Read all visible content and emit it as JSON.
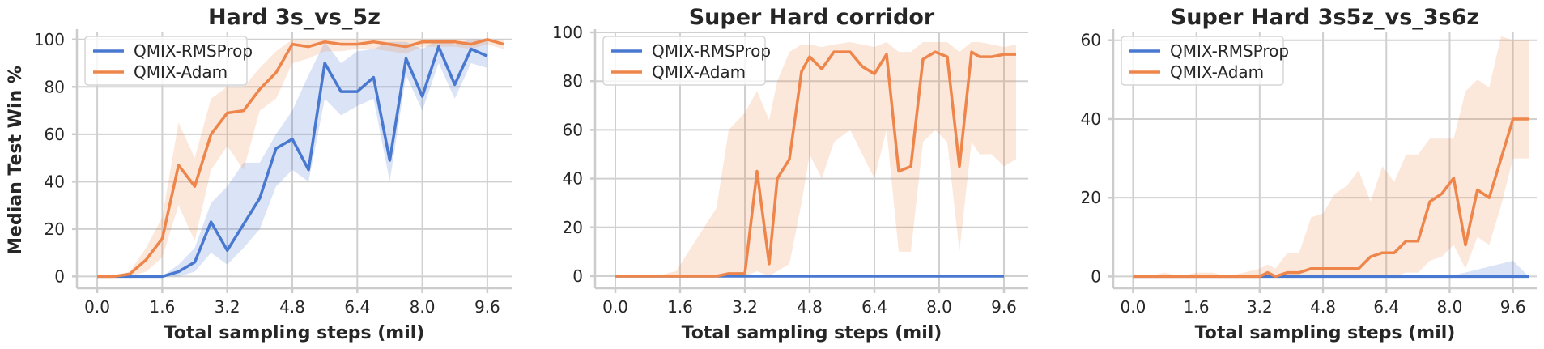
{
  "colors": {
    "rmsprop": "#4878d0",
    "adam": "#ee854a"
  },
  "chart_data": [
    {
      "type": "line",
      "title": "Hard 3s_vs_5z",
      "xlabel": "Total sampling steps (mil)",
      "ylabel": "Median Test Win %",
      "xlim": [
        -0.5,
        10.2
      ],
      "ylim": [
        -5,
        103
      ],
      "xticks": [
        "0.0",
        "1.6",
        "3.2",
        "4.8",
        "6.4",
        "8.0",
        "9.6"
      ],
      "yticks": [
        "0",
        "20",
        "40",
        "60",
        "80",
        "100"
      ],
      "grid": true,
      "legend": "top-left",
      "series": [
        {
          "name": "QMIX-RMSProp",
          "x": [
            0,
            0.4,
            0.8,
            1.2,
            1.6,
            2.0,
            2.4,
            2.8,
            3.2,
            3.6,
            4.0,
            4.4,
            4.8,
            5.2,
            5.6,
            6.0,
            6.4,
            6.8,
            7.2,
            7.6,
            8.0,
            8.4,
            8.8,
            9.2,
            9.6
          ],
          "y": [
            0,
            0,
            0,
            0,
            0,
            2,
            6,
            23,
            11,
            22,
            33,
            54,
            58,
            45,
            90,
            78,
            78,
            84,
            49,
            92,
            76,
            97,
            81,
            96,
            93
          ],
          "lower": [
            0,
            0,
            0,
            0,
            0,
            0,
            2,
            10,
            5,
            12,
            20,
            38,
            45,
            40,
            75,
            68,
            72,
            75,
            40,
            85,
            70,
            90,
            75,
            90,
            88
          ],
          "upper": [
            0,
            0,
            0,
            0,
            0,
            5,
            12,
            31,
            38,
            48,
            48,
            60,
            70,
            85,
            99,
            90,
            95,
            96,
            99,
            99,
            96,
            100,
            98,
            100,
            100
          ]
        },
        {
          "name": "QMIX-Adam",
          "x": [
            0,
            0.4,
            0.8,
            1.2,
            1.6,
            2.0,
            2.4,
            2.8,
            3.2,
            3.6,
            4.0,
            4.4,
            4.8,
            5.2,
            5.6,
            6.0,
            6.4,
            6.8,
            7.2,
            7.6,
            8.0,
            8.4,
            8.8,
            9.2,
            9.6,
            10.0
          ],
          "y": [
            0,
            0,
            1,
            7,
            16,
            47,
            38,
            60,
            69,
            70,
            79,
            86,
            98,
            97,
            99,
            98,
            98,
            99,
            98,
            97,
            99,
            99,
            99,
            98,
            100,
            98
          ],
          "lower": [
            0,
            0,
            0,
            2,
            8,
            30,
            15,
            45,
            55,
            45,
            70,
            75,
            90,
            92,
            95,
            95,
            96,
            96,
            95,
            94,
            97,
            97,
            97,
            96,
            98,
            96
          ],
          "upper": [
            0,
            0,
            2,
            12,
            25,
            65,
            50,
            75,
            80,
            80,
            88,
            95,
            100,
            100,
            100,
            100,
            100,
            100,
            100,
            100,
            100,
            100,
            100,
            100,
            100,
            100
          ]
        }
      ]
    },
    {
      "type": "line",
      "title": "Super Hard corridor",
      "xlabel": "Total sampling steps (mil)",
      "ylabel": "",
      "xlim": [
        -0.5,
        10.2
      ],
      "ylim": [
        -5,
        100
      ],
      "xticks": [
        "0.0",
        "1.6",
        "3.2",
        "4.8",
        "6.4",
        "8.0",
        "9.6"
      ],
      "yticks": [
        "0",
        "20",
        "40",
        "60",
        "80",
        "100"
      ],
      "grid": true,
      "legend": "top-left",
      "series": [
        {
          "name": "QMIX-RMSProp",
          "x": [
            0,
            1.2,
            2.4,
            3.6,
            4.8,
            6.0,
            7.2,
            8.0,
            8.4,
            8.8,
            9.6
          ],
          "y": [
            0,
            0,
            0,
            0,
            0,
            0,
            0,
            0,
            0,
            0,
            0
          ],
          "lower": [
            0,
            0,
            0,
            0,
            0,
            0,
            0,
            0,
            0,
            0,
            0
          ],
          "upper": [
            0,
            0,
            0,
            0,
            0,
            0,
            0,
            0,
            0,
            0,
            0
          ]
        },
        {
          "name": "QMIX-Adam",
          "x": [
            0,
            0.5,
            1.0,
            1.5,
            2.0,
            2.5,
            2.8,
            3.2,
            3.5,
            3.8,
            4.0,
            4.3,
            4.6,
            4.8,
            5.1,
            5.4,
            5.8,
            6.1,
            6.4,
            6.7,
            7.0,
            7.3,
            7.6,
            7.9,
            8.2,
            8.5,
            8.8,
            9.0,
            9.3,
            9.6,
            9.9
          ],
          "y": [
            0,
            0,
            0,
            0,
            0,
            0,
            1,
            1,
            43,
            5,
            40,
            48,
            84,
            90,
            85,
            92,
            92,
            86,
            83,
            91,
            43,
            45,
            89,
            92,
            90,
            45,
            92,
            90,
            90,
            91,
            91
          ],
          "lower": [
            0,
            0,
            0,
            0,
            0,
            0,
            0,
            0,
            2,
            0,
            2,
            5,
            30,
            50,
            40,
            55,
            60,
            50,
            40,
            60,
            10,
            10,
            55,
            60,
            55,
            10,
            55,
            50,
            50,
            45,
            48
          ],
          "upper": [
            0,
            0,
            0,
            2,
            15,
            28,
            60,
            67,
            76,
            64,
            80,
            92,
            95,
            95,
            94,
            95,
            96,
            95,
            94,
            96,
            92,
            92,
            96,
            96,
            96,
            92,
            96,
            96,
            95,
            94,
            95
          ]
        }
      ]
    },
    {
      "type": "line",
      "title": "Super Hard 3s5z_vs_3s6z",
      "xlabel": "Total sampling steps (mil)",
      "ylabel": "",
      "xlim": [
        -0.5,
        10.2
      ],
      "ylim": [
        -3,
        62
      ],
      "xticks": [
        "0.0",
        "1.6",
        "3.2",
        "4.8",
        "6.4",
        "8.0",
        "9.6"
      ],
      "yticks": [
        "0",
        "20",
        "40",
        "60"
      ],
      "grid": true,
      "legend": "top-left",
      "series": [
        {
          "name": "QMIX-RMSProp",
          "x": [
            0,
            2.0,
            4.0,
            6.0,
            8.0,
            9.6,
            10.0
          ],
          "y": [
            0,
            0,
            0,
            0,
            0,
            0,
            0
          ],
          "lower": [
            0,
            0,
            0,
            0,
            0,
            0,
            0
          ],
          "upper": [
            0,
            0,
            0,
            0,
            0,
            4,
            0
          ]
        },
        {
          "name": "QMIX-Adam",
          "x": [
            0,
            0.4,
            0.8,
            1.2,
            1.6,
            2.0,
            2.4,
            2.8,
            3.2,
            3.4,
            3.6,
            3.9,
            4.2,
            4.5,
            4.8,
            5.1,
            5.4,
            5.7,
            6.0,
            6.3,
            6.6,
            6.9,
            7.2,
            7.5,
            7.8,
            8.1,
            8.4,
            8.7,
            9.0,
            9.3,
            9.6,
            10.0
          ],
          "y": [
            0,
            0,
            0,
            0,
            0,
            0,
            0,
            0,
            0,
            1,
            0,
            1,
            1,
            2,
            2,
            2,
            2,
            2,
            5,
            6,
            6,
            9,
            9,
            19,
            21,
            25,
            8,
            22,
            20,
            30,
            40,
            40
          ],
          "lower": [
            0,
            0,
            0,
            0,
            0,
            0,
            0,
            0,
            0,
            0,
            0,
            0,
            0,
            0,
            0,
            0,
            0,
            0,
            0,
            0,
            0,
            1,
            1,
            4,
            5,
            8,
            2,
            10,
            8,
            18,
            30,
            30
          ],
          "upper": [
            0,
            0,
            1,
            0,
            1,
            1,
            0,
            1,
            2,
            3,
            2,
            6,
            6,
            15,
            16,
            21,
            23,
            27,
            19,
            28,
            24,
            31,
            31,
            35,
            35,
            35,
            47,
            50,
            48,
            61,
            60,
            60
          ]
        }
      ]
    }
  ]
}
